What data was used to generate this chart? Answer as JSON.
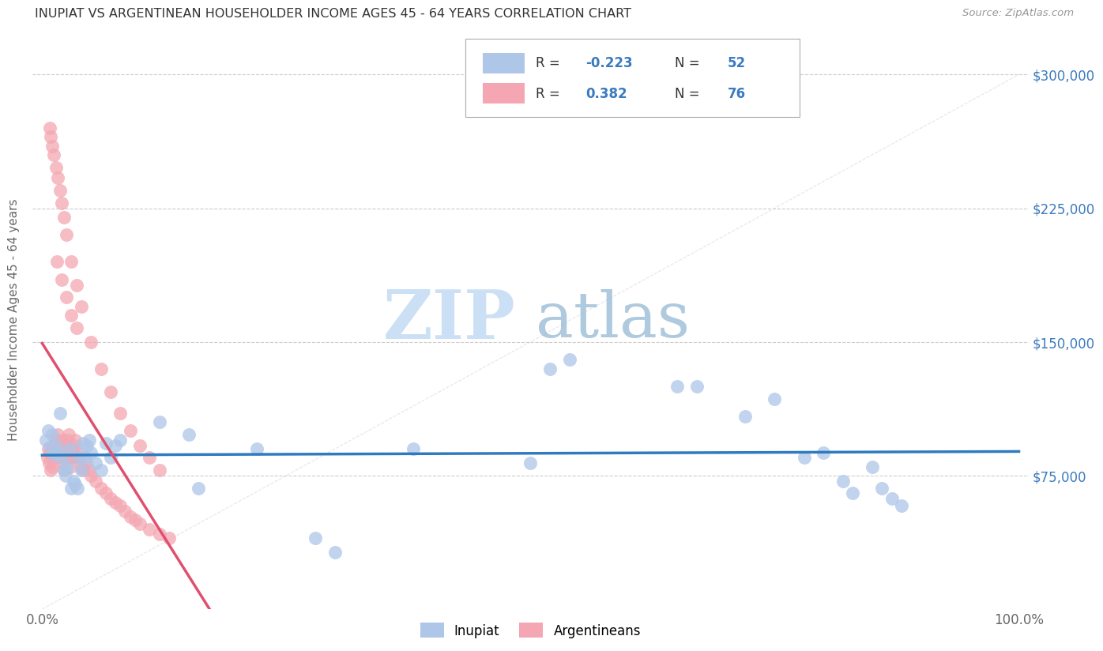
{
  "title": "INUPIAT VS ARGENTINEAN HOUSEHOLDER INCOME AGES 45 - 64 YEARS CORRELATION CHART",
  "source": "Source: ZipAtlas.com",
  "ylabel": "Householder Income Ages 45 - 64 years",
  "ytick_values": [
    75000,
    150000,
    225000,
    300000
  ],
  "ylim": [
    0,
    325000
  ],
  "xlim": [
    -0.01,
    1.01
  ],
  "inupiat_color": "#aec6e8",
  "argent_color": "#f4a7b2",
  "inupiat_line_color": "#2f7bbf",
  "argent_line_color": "#e0506e",
  "diagonal_color": "#cccccc",
  "background": "#ffffff",
  "inupiat_x": [
    0.004,
    0.006,
    0.008,
    0.01,
    0.012,
    0.014,
    0.016,
    0.018,
    0.02,
    0.022,
    0.024,
    0.026,
    0.028,
    0.03,
    0.032,
    0.034,
    0.036,
    0.038,
    0.04,
    0.042,
    0.044,
    0.046,
    0.048,
    0.05,
    0.055,
    0.06,
    0.065,
    0.07,
    0.075,
    0.08,
    0.12,
    0.15,
    0.16,
    0.22,
    0.28,
    0.3,
    0.38,
    0.5,
    0.52,
    0.54,
    0.65,
    0.67,
    0.72,
    0.75,
    0.78,
    0.8,
    0.82,
    0.83,
    0.85,
    0.86,
    0.87,
    0.88
  ],
  "inupiat_y": [
    95000,
    100000,
    91000,
    98000,
    87000,
    92000,
    88000,
    110000,
    85000,
    78000,
    75000,
    80000,
    90000,
    68000,
    72000,
    70000,
    68000,
    85000,
    78000,
    93000,
    85000,
    92000,
    95000,
    88000,
    82000,
    78000,
    93000,
    85000,
    92000,
    95000,
    105000,
    98000,
    68000,
    90000,
    40000,
    32000,
    90000,
    82000,
    135000,
    140000,
    125000,
    125000,
    108000,
    118000,
    85000,
    88000,
    72000,
    65000,
    80000,
    68000,
    62000,
    58000
  ],
  "argent_x": [
    0.005,
    0.006,
    0.007,
    0.008,
    0.009,
    0.01,
    0.011,
    0.012,
    0.013,
    0.014,
    0.015,
    0.016,
    0.017,
    0.018,
    0.019,
    0.02,
    0.021,
    0.022,
    0.023,
    0.024,
    0.025,
    0.026,
    0.027,
    0.028,
    0.029,
    0.03,
    0.031,
    0.032,
    0.033,
    0.034,
    0.036,
    0.038,
    0.04,
    0.042,
    0.045,
    0.048,
    0.05,
    0.055,
    0.06,
    0.065,
    0.07,
    0.075,
    0.08,
    0.085,
    0.09,
    0.095,
    0.1,
    0.11,
    0.12,
    0.13,
    0.008,
    0.009,
    0.01,
    0.012,
    0.014,
    0.016,
    0.018,
    0.02,
    0.022,
    0.025,
    0.03,
    0.035,
    0.04,
    0.05,
    0.06,
    0.07,
    0.08,
    0.09,
    0.1,
    0.11,
    0.12,
    0.015,
    0.02,
    0.025,
    0.03,
    0.035
  ],
  "argent_y": [
    85000,
    90000,
    82000,
    88000,
    78000,
    80000,
    85000,
    92000,
    88000,
    95000,
    90000,
    98000,
    85000,
    92000,
    88000,
    95000,
    82000,
    78000,
    85000,
    88000,
    92000,
    95000,
    98000,
    85000,
    80000,
    90000,
    88000,
    85000,
    92000,
    95000,
    88000,
    85000,
    80000,
    78000,
    82000,
    78000,
    75000,
    72000,
    68000,
    65000,
    62000,
    60000,
    58000,
    55000,
    52000,
    50000,
    48000,
    45000,
    42000,
    40000,
    270000,
    265000,
    260000,
    255000,
    248000,
    242000,
    235000,
    228000,
    220000,
    210000,
    195000,
    182000,
    170000,
    150000,
    135000,
    122000,
    110000,
    100000,
    92000,
    85000,
    78000,
    195000,
    185000,
    175000,
    165000,
    158000
  ]
}
